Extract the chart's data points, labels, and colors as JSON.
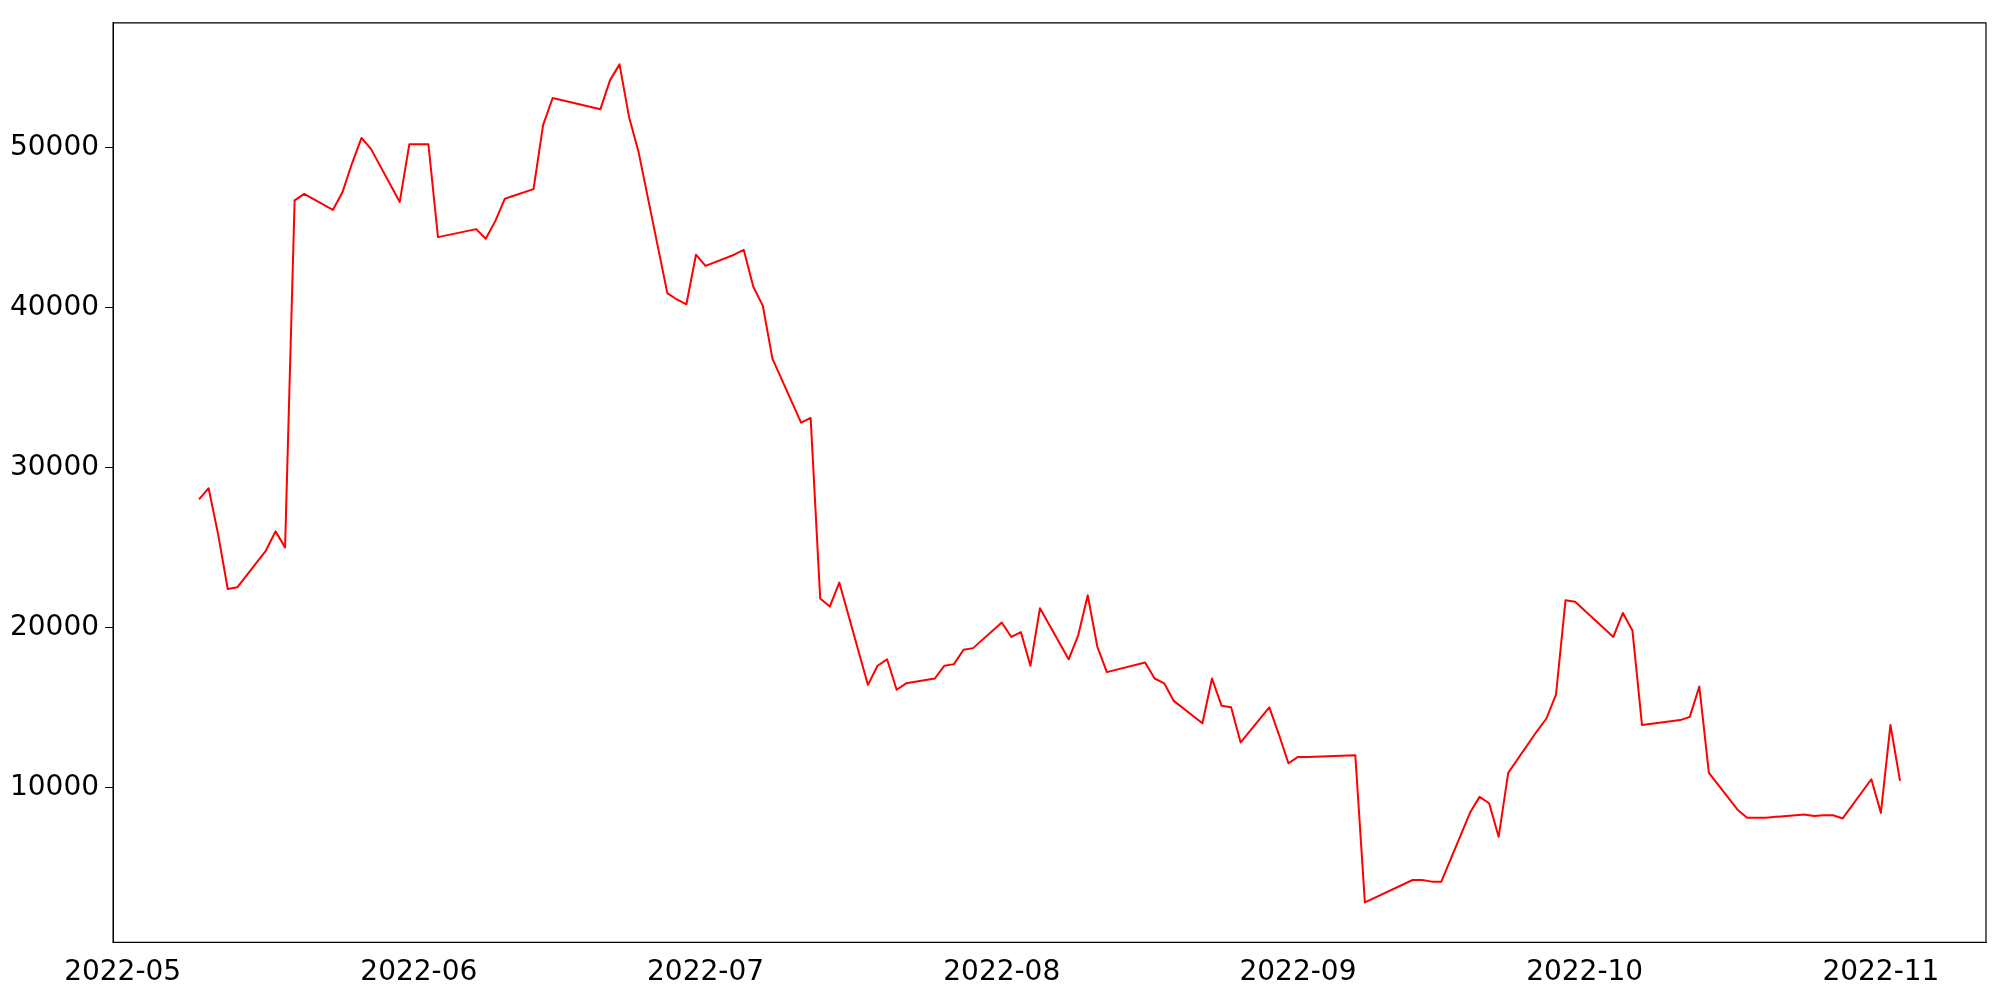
{
  "chart_data": {
    "type": "line",
    "x": [
      "2022-05-09",
      "2022-05-10",
      "2022-05-11",
      "2022-05-12",
      "2022-05-13",
      "2022-05-16",
      "2022-05-17",
      "2022-05-18",
      "2022-05-19",
      "2022-05-20",
      "2022-05-23",
      "2022-05-24",
      "2022-05-25",
      "2022-05-26",
      "2022-05-27",
      "2022-05-30",
      "2022-05-31",
      "2022-06-02",
      "2022-06-03",
      "2022-06-07",
      "2022-06-08",
      "2022-06-09",
      "2022-06-10",
      "2022-06-13",
      "2022-06-14",
      "2022-06-15",
      "2022-06-20",
      "2022-06-21",
      "2022-06-22",
      "2022-06-23",
      "2022-06-24",
      "2022-06-27",
      "2022-06-28",
      "2022-06-29",
      "2022-06-30",
      "2022-07-01",
      "2022-07-04",
      "2022-07-05",
      "2022-07-06",
      "2022-07-07",
      "2022-07-08",
      "2022-07-11",
      "2022-07-12",
      "2022-07-13",
      "2022-07-14",
      "2022-07-15",
      "2022-07-18",
      "2022-07-19",
      "2022-07-20",
      "2022-07-21",
      "2022-07-22",
      "2022-07-25",
      "2022-07-26",
      "2022-07-27",
      "2022-07-28",
      "2022-07-29",
      "2022-08-01",
      "2022-08-02",
      "2022-08-03",
      "2022-08-04",
      "2022-08-05",
      "2022-08-08",
      "2022-08-09",
      "2022-08-10",
      "2022-08-11",
      "2022-08-12",
      "2022-08-16",
      "2022-08-17",
      "2022-08-18",
      "2022-08-19",
      "2022-08-22",
      "2022-08-23",
      "2022-08-24",
      "2022-08-25",
      "2022-08-26",
      "2022-08-29",
      "2022-08-30",
      "2022-08-31",
      "2022-09-01",
      "2022-09-02",
      "2022-09-07",
      "2022-09-08",
      "2022-09-13",
      "2022-09-14",
      "2022-09-15",
      "2022-09-16",
      "2022-09-19",
      "2022-09-20",
      "2022-09-21",
      "2022-09-22",
      "2022-09-23",
      "2022-09-26",
      "2022-09-27",
      "2022-09-28",
      "2022-09-29",
      "2022-09-30",
      "2022-10-04",
      "2022-10-05",
      "2022-10-06",
      "2022-10-07",
      "2022-10-11",
      "2022-10-12",
      "2022-10-13",
      "2022-10-14",
      "2022-10-17",
      "2022-10-18",
      "2022-10-19",
      "2022-10-20",
      "2022-10-21",
      "2022-10-24",
      "2022-10-25",
      "2022-10-26",
      "2022-10-27",
      "2022-10-28",
      "2022-10-31",
      "2022-11-01",
      "2022-11-02",
      "2022-11-03"
    ],
    "series": [
      {
        "color": "#ff0000",
        "values": [
          28000,
          28700,
          25800,
          22400,
          22500,
          24800,
          26000,
          25000,
          46700,
          47100,
          46100,
          47200,
          49000,
          50600,
          49900,
          46600,
          50200,
          50200,
          44400,
          44900,
          44300,
          45400,
          46800,
          47400,
          51400,
          53100,
          52400,
          54200,
          55200,
          51900,
          49700,
          40900,
          40500,
          40200,
          43300,
          42600,
          43300,
          43600,
          41300,
          40100,
          36800,
          32800,
          33100,
          21800,
          21300,
          22800,
          16400,
          17600,
          18000,
          16100,
          16500,
          16800,
          17600,
          17700,
          18600,
          18700,
          20300,
          19400,
          19700,
          17600,
          21200,
          18000,
          19500,
          22000,
          18800,
          17200,
          17800,
          16800,
          16500,
          15400,
          14000,
          16800,
          15100,
          15000,
          12800,
          15000,
          13300,
          11500,
          11900,
          11900,
          12000,
          2800,
          4200,
          4200,
          4100,
          4100,
          8400,
          9400,
          9000,
          6900,
          10900,
          13500,
          14300,
          15800,
          21700,
          21600,
          19400,
          20900,
          19800,
          13900,
          14200,
          14400,
          16300,
          10900,
          8600,
          8100,
          8100,
          8100,
          8150,
          8300,
          8200,
          8250,
          8250,
          8050,
          10500,
          8400,
          13900,
          10400
        ]
      }
    ],
    "xlim": [
      "2022-04-30",
      "2022-11-12"
    ],
    "xticks": [
      "2022-05",
      "2022-06",
      "2022-07",
      "2022-08",
      "2022-09",
      "2022-10",
      "2022-11"
    ],
    "ylim": [
      300,
      57800
    ],
    "yticks": [
      10000,
      20000,
      30000,
      40000,
      50000
    ],
    "grid": false,
    "legend": false,
    "marker": "none",
    "line_style": "solid"
  }
}
